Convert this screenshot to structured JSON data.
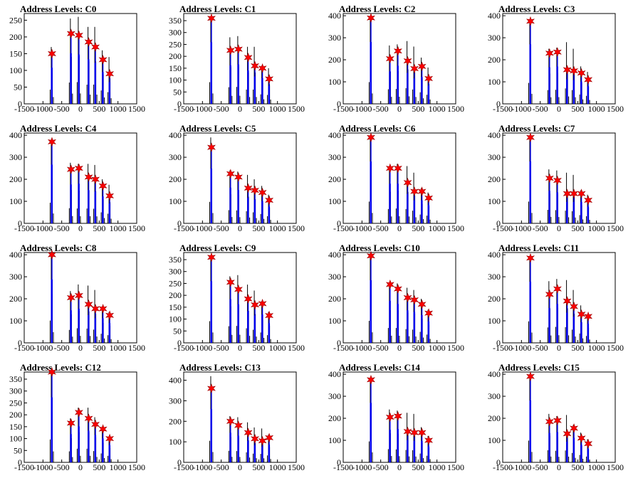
{
  "colors": {
    "bar_outline": "#000000",
    "bar_fill": "#0000ee",
    "marker_fill": "#ff0000",
    "marker_stroke": "#990000"
  },
  "x_tick_labels": [
    "-1500",
    "-1000",
    "-500",
    "0",
    "500",
    "1000",
    "1500"
  ],
  "chart_data": [
    {
      "type": "histogram",
      "title": "Address Levels: C0",
      "xlim": [
        -1500,
        1500
      ],
      "ylim": [
        0,
        270
      ],
      "y_ticks": [
        0,
        50,
        100,
        150,
        200,
        250
      ],
      "x_ticks": [
        -1500,
        -1000,
        -500,
        0,
        500,
        1000,
        1500
      ],
      "peaks": {
        "x": [
          -760,
          -250,
          -40,
          220,
          400,
          600,
          780
        ],
        "y": [
          150,
          210,
          205,
          185,
          170,
          132,
          90
        ]
      },
      "max_heights": [
        170,
        255,
        260,
        230,
        230,
        160,
        140
      ]
    },
    {
      "type": "histogram",
      "title": "Address Levels: C1",
      "xlim": [
        -1500,
        1500
      ],
      "ylim": [
        0,
        380
      ],
      "y_ticks": [
        0,
        50,
        100,
        150,
        200,
        250,
        300,
        350
      ],
      "x_ticks": [
        -1500,
        -1000,
        -500,
        0,
        500,
        1000,
        1500
      ],
      "peaks": {
        "x": [
          -760,
          -250,
          -40,
          220,
          400,
          600,
          780
        ],
        "y": [
          360,
          225,
          230,
          195,
          160,
          150,
          105
        ]
      },
      "max_heights": [
        365,
        280,
        285,
        240,
        240,
        160,
        150
      ]
    },
    {
      "type": "histogram",
      "title": "Address Levels: C2",
      "xlim": [
        -1500,
        1500
      ],
      "ylim": [
        0,
        410
      ],
      "y_ticks": [
        0,
        100,
        200,
        300,
        400
      ],
      "x_ticks": [
        -1500,
        -1000,
        -500,
        0,
        500,
        1000,
        1500
      ],
      "peaks": {
        "x": [
          -760,
          -250,
          -40,
          220,
          400,
          600,
          780
        ],
        "y": [
          390,
          205,
          240,
          195,
          160,
          170,
          115
        ]
      },
      "max_heights": [
        395,
        265,
        270,
        285,
        260,
        210,
        165
      ]
    },
    {
      "type": "histogram",
      "title": "Address Levels: C3",
      "xlim": [
        -1500,
        1500
      ],
      "ylim": [
        0,
        410
      ],
      "y_ticks": [
        0,
        100,
        200,
        300,
        400
      ],
      "x_ticks": [
        -1500,
        -1000,
        -500,
        0,
        500,
        1000,
        1500
      ],
      "peaks": {
        "x": [
          -760,
          -250,
          -40,
          220,
          400,
          600,
          780
        ],
        "y": [
          375,
          230,
          235,
          155,
          150,
          140,
          110
        ]
      },
      "max_heights": [
        380,
        250,
        255,
        280,
        250,
        170,
        145
      ]
    },
    {
      "type": "histogram",
      "title": "Address Levels: C4",
      "xlim": [
        -1500,
        1500
      ],
      "ylim": [
        0,
        410
      ],
      "y_ticks": [
        0,
        100,
        200,
        300,
        400
      ],
      "x_ticks": [
        -1500,
        -1000,
        -500,
        0,
        500,
        1000,
        1500
      ],
      "peaks": {
        "x": [
          -760,
          -250,
          -40,
          220,
          400,
          600,
          780
        ],
        "y": [
          370,
          245,
          250,
          210,
          200,
          170,
          125
        ]
      },
      "max_heights": [
        375,
        275,
        270,
        270,
        265,
        200,
        175
      ]
    },
    {
      "type": "histogram",
      "title": "Address Levels: C5",
      "xlim": [
        -1500,
        1500
      ],
      "ylim": [
        0,
        410
      ],
      "y_ticks": [
        0,
        100,
        200,
        300,
        400
      ],
      "x_ticks": [
        -1500,
        -1000,
        -500,
        0,
        500,
        1000,
        1500
      ],
      "peaks": {
        "x": [
          -760,
          -250,
          -40,
          220,
          400,
          600,
          780
        ],
        "y": [
          345,
          225,
          210,
          160,
          150,
          140,
          105
        ]
      },
      "max_heights": [
        390,
        240,
        235,
        220,
        200,
        170,
        130
      ]
    },
    {
      "type": "histogram",
      "title": "Address Levels: C6",
      "xlim": [
        -1500,
        1500
      ],
      "ylim": [
        0,
        410
      ],
      "y_ticks": [
        0,
        100,
        200,
        300,
        400
      ],
      "x_ticks": [
        -1500,
        -1000,
        -500,
        0,
        500,
        1000,
        1500
      ],
      "peaks": {
        "x": [
          -760,
          -250,
          -40,
          220,
          400,
          600,
          780
        ],
        "y": [
          390,
          250,
          250,
          185,
          145,
          145,
          115
        ]
      },
      "max_heights": [
        395,
        260,
        270,
        260,
        230,
        160,
        140
      ]
    },
    {
      "type": "histogram",
      "title": "Address Levels: C7",
      "xlim": [
        -1500,
        1500
      ],
      "ylim": [
        0,
        410
      ],
      "y_ticks": [
        0,
        100,
        200,
        300,
        400
      ],
      "x_ticks": [
        -1500,
        -1000,
        -500,
        0,
        500,
        1000,
        1500
      ],
      "peaks": {
        "x": [
          -760,
          -250,
          -40,
          220,
          400,
          600,
          780
        ],
        "y": [
          390,
          205,
          195,
          135,
          135,
          135,
          105
        ]
      },
      "max_heights": [
        395,
        245,
        240,
        230,
        220,
        150,
        130
      ]
    },
    {
      "type": "histogram",
      "title": "Address Levels: C8",
      "xlim": [
        -1500,
        1500
      ],
      "ylim": [
        0,
        410
      ],
      "y_ticks": [
        0,
        100,
        200,
        300,
        400
      ],
      "x_ticks": [
        -1500,
        -1000,
        -500,
        0,
        500,
        1000,
        1500
      ],
      "peaks": {
        "x": [
          -760,
          -250,
          -40,
          220,
          400,
          600,
          780
        ],
        "y": [
          400,
          205,
          215,
          175,
          155,
          155,
          125
        ]
      },
      "max_heights": [
        405,
        235,
        265,
        260,
        240,
        165,
        140
      ]
    },
    {
      "type": "histogram",
      "title": "Address Levels: C9",
      "xlim": [
        -1500,
        1500
      ],
      "ylim": [
        0,
        380
      ],
      "y_ticks": [
        0,
        50,
        100,
        150,
        200,
        250,
        300,
        350
      ],
      "x_ticks": [
        -1500,
        -1000,
        -500,
        0,
        500,
        1000,
        1500
      ],
      "peaks": {
        "x": [
          -760,
          -250,
          -40,
          220,
          400,
          600,
          780
        ],
        "y": [
          360,
          255,
          225,
          185,
          160,
          165,
          115
        ]
      },
      "max_heights": [
        365,
        280,
        285,
        245,
        220,
        175,
        130
      ]
    },
    {
      "type": "histogram",
      "title": "Address Levels: C10",
      "xlim": [
        -1500,
        1500
      ],
      "ylim": [
        0,
        410
      ],
      "y_ticks": [
        0,
        100,
        200,
        300,
        400
      ],
      "x_ticks": [
        -1500,
        -1000,
        -500,
        0,
        500,
        1000,
        1500
      ],
      "peaks": {
        "x": [
          -760,
          -250,
          -40,
          220,
          400,
          600,
          780
        ],
        "y": [
          395,
          265,
          245,
          205,
          195,
          175,
          135
        ]
      },
      "max_heights": [
        400,
        270,
        270,
        250,
        240,
        200,
        150
      ]
    },
    {
      "type": "histogram",
      "title": "Address Levels: C11",
      "xlim": [
        -1500,
        1500
      ],
      "ylim": [
        0,
        410
      ],
      "y_ticks": [
        0,
        100,
        200,
        300,
        400
      ],
      "x_ticks": [
        -1500,
        -1000,
        -500,
        0,
        500,
        1000,
        1500
      ],
      "peaks": {
        "x": [
          -760,
          -250,
          -40,
          220,
          400,
          600,
          780
        ],
        "y": [
          385,
          220,
          245,
          190,
          165,
          130,
          120
        ]
      },
      "max_heights": [
        390,
        280,
        290,
        285,
        240,
        170,
        125
      ]
    },
    {
      "type": "histogram",
      "title": "Address Levels: C12",
      "xlim": [
        -1500,
        1500
      ],
      "ylim": [
        0,
        380
      ],
      "y_ticks": [
        0,
        50,
        100,
        150,
        200,
        250,
        300,
        350
      ],
      "x_ticks": [
        -1500,
        -1000,
        -500,
        0,
        500,
        1000,
        1500
      ],
      "peaks": {
        "x": [
          -760,
          -250,
          -40,
          220,
          400,
          600,
          780
        ],
        "y": [
          380,
          165,
          210,
          185,
          160,
          140,
          100
        ]
      },
      "max_heights": [
        385,
        185,
        230,
        230,
        190,
        150,
        110
      ]
    },
    {
      "type": "histogram",
      "title": "Address Levels: C13",
      "xlim": [
        -1500,
        1500
      ],
      "ylim": [
        0,
        440
      ],
      "y_ticks": [
        0,
        100,
        200,
        300,
        400
      ],
      "x_ticks": [
        -1500,
        -1000,
        -500,
        0,
        500,
        1000,
        1500
      ],
      "peaks": {
        "x": [
          -760,
          -250,
          -40,
          220,
          400,
          600,
          780
        ],
        "y": [
          360,
          200,
          180,
          145,
          115,
          105,
          120
        ]
      },
      "max_heights": [
        420,
        225,
        220,
        195,
        170,
        165,
        135
      ]
    },
    {
      "type": "histogram",
      "title": "Address Levels: C14",
      "xlim": [
        -1500,
        1500
      ],
      "ylim": [
        0,
        410
      ],
      "y_ticks": [
        0,
        100,
        200,
        300,
        400
      ],
      "x_ticks": [
        -1500,
        -1000,
        -500,
        0,
        500,
        1000,
        1500
      ],
      "peaks": {
        "x": [
          -760,
          -250,
          -40,
          220,
          400,
          600,
          780
        ],
        "y": [
          375,
          205,
          210,
          140,
          135,
          135,
          100
        ]
      },
      "max_heights": [
        380,
        240,
        235,
        225,
        220,
        160,
        120
      ]
    },
    {
      "type": "histogram",
      "title": "Address Levels: C15",
      "xlim": [
        -1500,
        1500
      ],
      "ylim": [
        0,
        410
      ],
      "y_ticks": [
        0,
        100,
        200,
        300,
        400
      ],
      "x_ticks": [
        -1500,
        -1000,
        -500,
        0,
        500,
        1000,
        1500
      ],
      "peaks": {
        "x": [
          -760,
          -250,
          -40,
          220,
          400,
          600,
          780
        ],
        "y": [
          390,
          185,
          190,
          130,
          155,
          110,
          85
        ]
      },
      "max_heights": [
        395,
        220,
        210,
        215,
        170,
        135,
        105
      ]
    }
  ]
}
